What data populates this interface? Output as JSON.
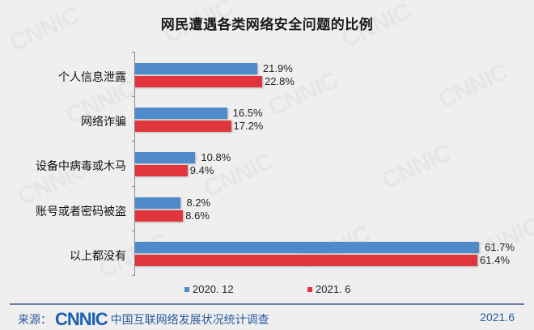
{
  "title": "网民遭遇各类网络安全问题的比例",
  "legend": [
    {
      "label": "2020. 12",
      "color": "#4f8bcb"
    },
    {
      "label": "2021. 6",
      "color": "#e0353c"
    }
  ],
  "categories": [
    {
      "label": "个人信息泄露",
      "v2020": "21.9%",
      "v2021": "22.8%"
    },
    {
      "label": "网络诈骗",
      "v2020": "16.5%",
      "v2021": "17.2%"
    },
    {
      "label": "设备中病毒或木马",
      "v2020": "10.8%",
      "v2021": "9.4%"
    },
    {
      "label": "账号或者密码被盗",
      "v2020": "8.2%",
      "v2021": "8.6%"
    },
    {
      "label": "以上都没有",
      "v2020": "61.7%",
      "v2021": "61.4%"
    }
  ],
  "footer": {
    "source_label": "来源：",
    "logo": "CNNIC",
    "source_text": "中国互联网络发展状况统计调查",
    "date": "2021.6"
  },
  "watermark": "CNNIC",
  "chart_data": {
    "type": "bar",
    "orientation": "horizontal",
    "title": "网民遭遇各类网络安全问题的比例",
    "categories": [
      "个人信息泄露",
      "网络诈骗",
      "设备中病毒或木马",
      "账号或者密码被盗",
      "以上都没有"
    ],
    "series": [
      {
        "name": "2020. 12",
        "color": "#4f8bcb",
        "values": [
          21.9,
          16.5,
          10.8,
          8.2,
          61.7
        ]
      },
      {
        "name": "2021. 6",
        "color": "#e0353c",
        "values": [
          22.8,
          17.2,
          9.4,
          8.6,
          61.4
        ]
      }
    ],
    "xlabel": "",
    "ylabel": "",
    "unit": "%",
    "legend_position": "bottom",
    "grid": false
  }
}
